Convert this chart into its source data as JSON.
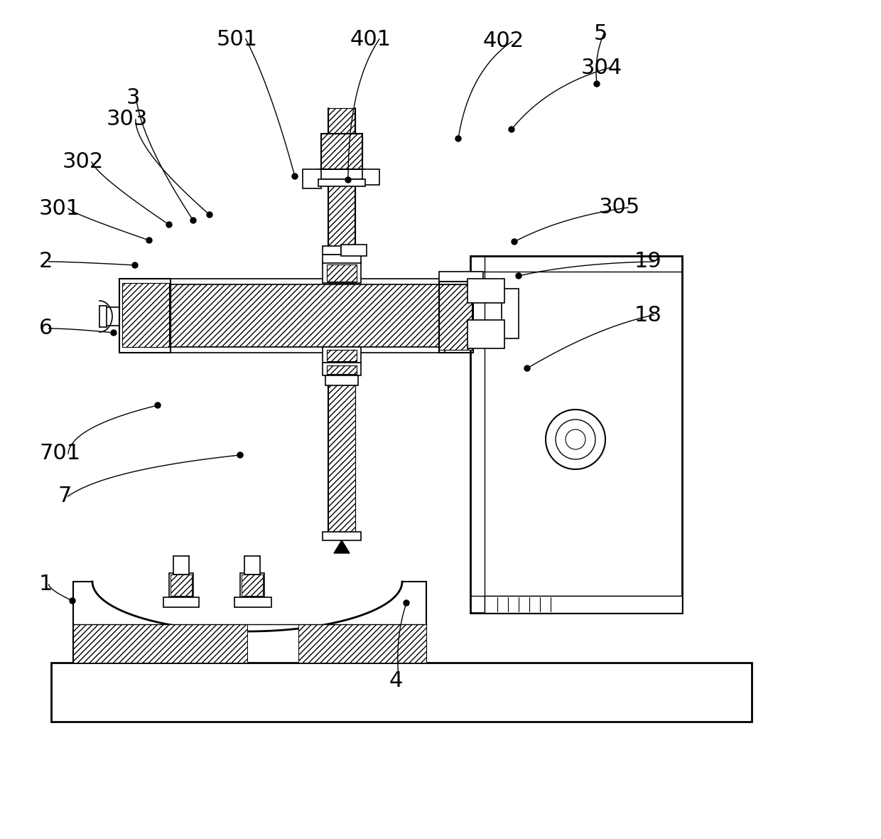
{
  "bg": "#ffffff",
  "lc": "#000000",
  "leaders": [
    [
      "501",
      305,
      55,
      415,
      248,
      380,
      120
    ],
    [
      "401",
      493,
      55,
      490,
      253,
      490,
      120
    ],
    [
      "402",
      680,
      58,
      645,
      195,
      660,
      100
    ],
    [
      "5",
      836,
      48,
      840,
      118,
      836,
      80
    ],
    [
      "3",
      178,
      138,
      272,
      310,
      200,
      200
    ],
    [
      "303",
      150,
      168,
      295,
      302,
      190,
      210
    ],
    [
      "302",
      88,
      228,
      238,
      316,
      140,
      250
    ],
    [
      "301",
      55,
      293,
      210,
      338,
      100,
      300
    ],
    [
      "2",
      55,
      368,
      190,
      373,
      100,
      368
    ],
    [
      "6",
      55,
      462,
      160,
      468,
      100,
      462
    ],
    [
      "701",
      55,
      638,
      222,
      570,
      100,
      600
    ],
    [
      "7",
      82,
      698,
      338,
      640,
      150,
      660
    ],
    [
      "1",
      55,
      822,
      102,
      845,
      70,
      830
    ],
    [
      "304",
      818,
      95,
      720,
      182,
      770,
      120
    ],
    [
      "305",
      843,
      292,
      724,
      340,
      790,
      305
    ],
    [
      "19",
      893,
      368,
      730,
      388,
      810,
      370
    ],
    [
      "18",
      893,
      443,
      742,
      518,
      840,
      460
    ],
    [
      "4",
      548,
      958,
      572,
      848,
      555,
      900
    ]
  ]
}
